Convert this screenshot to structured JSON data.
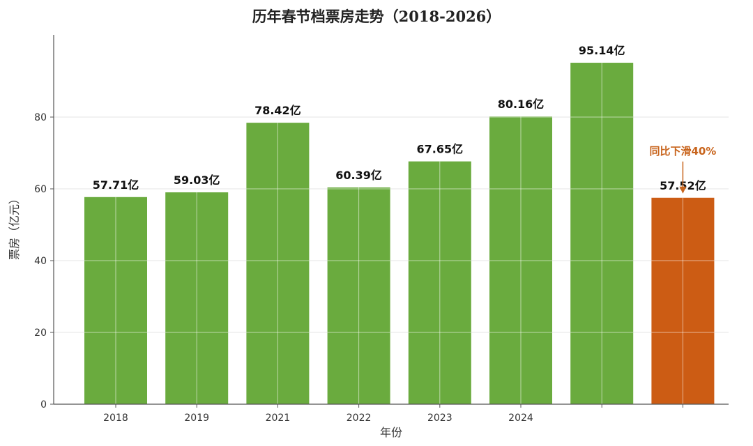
{
  "chart_data": {
    "type": "bar",
    "title": "历年春节档票房走势（2018-2026）",
    "xlabel": "年份",
    "ylabel": "票房（亿元）",
    "categories": [
      "2018",
      "2019",
      "2021",
      "2022",
      "2023",
      "2024",
      "",
      ""
    ],
    "values": [
      57.71,
      59.03,
      78.42,
      60.39,
      67.65,
      80.16,
      95.14,
      57.52
    ],
    "data_labels": [
      "57.71亿",
      "59.03亿",
      "78.42亿",
      "60.39亿",
      "67.65亿",
      "80.16亿",
      "95.14亿",
      "57.52亿"
    ],
    "ylim": [
      0,
      100
    ],
    "yticks": [
      0,
      20,
      40,
      60,
      80
    ],
    "grid": true,
    "colors": {
      "default": "#6aab3e",
      "highlight": "#cc5c14",
      "annotation": "#c8641c"
    },
    "highlight_index": 7,
    "annotation": {
      "text": "同比下滑40%",
      "target_index": 7
    }
  }
}
